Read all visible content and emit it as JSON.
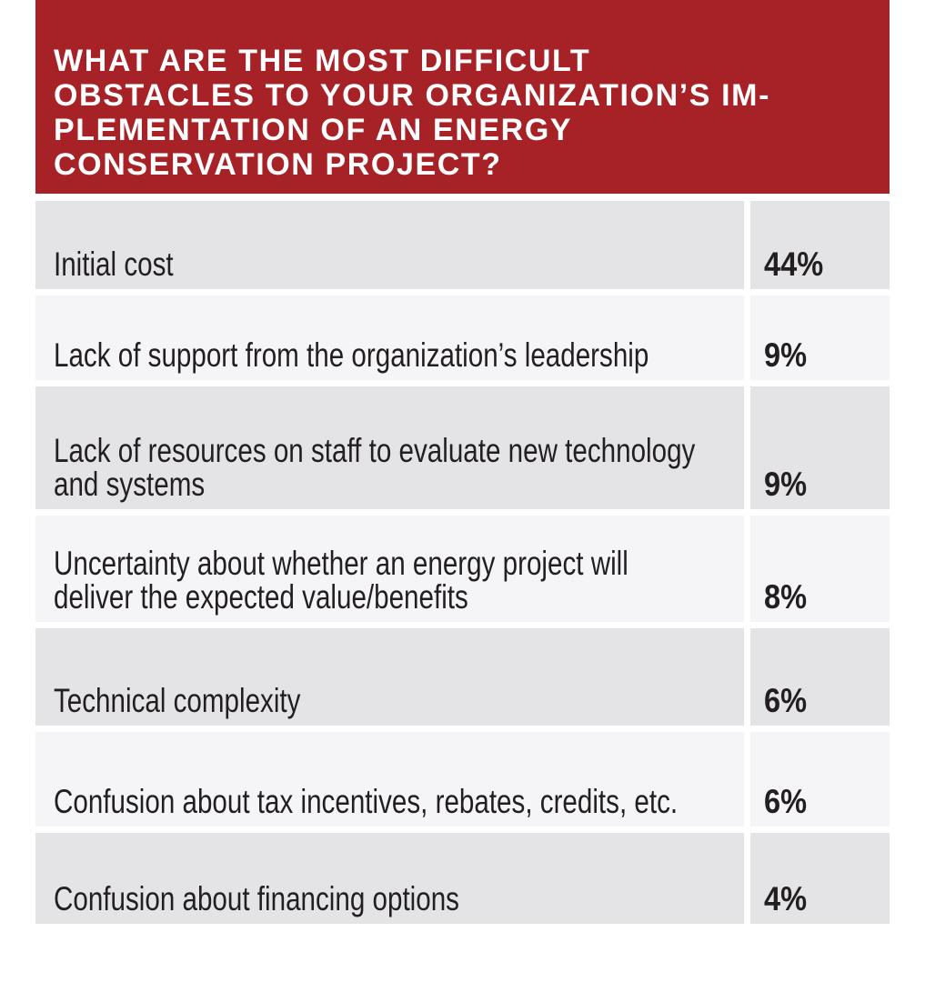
{
  "header": {
    "lines": [
      "WHAT ARE THE MOST DIFFICULT",
      "OBSTACLES TO YOUR ORGANIZATION’S IM-",
      "PLEMENTATION OF AN ENERGY",
      "CONSERVATION PROJECT?"
    ],
    "bg_color": "#a62227",
    "text_color": "#ffffff"
  },
  "table": {
    "rows": [
      {
        "lines": [
          "Initial cost",
          ""
        ],
        "value": "44%"
      },
      {
        "lines": [
          "Lack of support from the organization’s leadership",
          ""
        ],
        "value": "9%"
      },
      {
        "lines": [
          "Lack of resources on staff to evaluate new technology",
          "and systems"
        ],
        "value": "9%"
      },
      {
        "lines": [
          "Uncertainty about whether an energy project will",
          "deliver the expected value/benefits"
        ],
        "value": "8%"
      },
      {
        "lines": [
          "Technical complexity",
          ""
        ],
        "value": "6%"
      },
      {
        "lines": [
          "Confusion about tax incentives, rebates, credits, etc.",
          ""
        ],
        "value": "6%"
      },
      {
        "lines": [
          "Confusion about financing options",
          ""
        ],
        "value": "4%"
      }
    ],
    "row_color_odd": "#e4e4e6",
    "row_color_even": "#f5f5f7",
    "text_color": "#231f20"
  },
  "chart_data": {
    "type": "table",
    "title": "WHAT ARE THE MOST DIFFICULT OBSTACLES TO YOUR ORGANIZATION’S IMPLEMENTATION OF AN ENERGY CONSERVATION PROJECT?",
    "categories": [
      "Initial cost",
      "Lack of support from the organization’s leadership",
      "Lack of resources on staff to evaluate new technology and systems",
      "Uncertainty about whether an energy project will deliver the expected value/benefits",
      "Technical complexity",
      "Confusion about tax incentives, rebates, credits, etc.",
      "Confusion about financing options"
    ],
    "values": [
      44,
      9,
      9,
      8,
      6,
      6,
      4
    ],
    "unit": "%"
  }
}
